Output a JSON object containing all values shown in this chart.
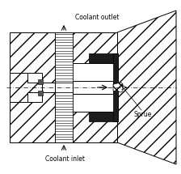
{
  "background_color": "#ffffff",
  "dark_fill": "#1c1c1c",
  "labels": {
    "coolant_outlet": "Coolant outlet",
    "coolant_inlet": "Coolant inlet",
    "sprue": "Sprue"
  },
  "figsize": [
    2.24,
    2.15
  ],
  "dpi": 100
}
